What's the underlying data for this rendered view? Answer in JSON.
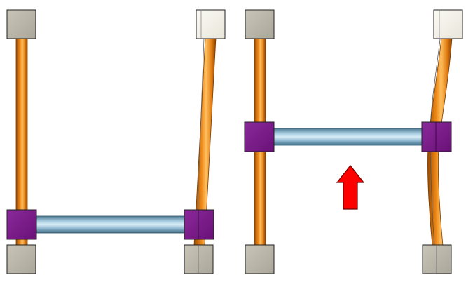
{
  "scene": {
    "left_panel": {
      "id": "left",
      "crossbar_position": "bottom",
      "right_rod_shape": "tilted"
    },
    "right_panel": {
      "id": "right",
      "crossbar_position": "middle",
      "right_rod_shape": "curved",
      "arrow_direction": "up"
    }
  },
  "colors": {
    "background": "#ffffff",
    "rod_orange": "#e07b10",
    "rod_highlight": "#ffc060",
    "rod_shadow": "#9a4a00",
    "crossbar_blue": "#8bb4cc",
    "crossbar_highlight": "#d8ecf6",
    "crossbar_shadow": "#4f7c96",
    "connector_purple": "#7a1a8a",
    "end_block_gray": "#b8b5a8",
    "end_block_white": "#f4f2ea",
    "arrow_red": "#ff0000"
  },
  "icons": {
    "arrow": "up-arrow-icon"
  }
}
